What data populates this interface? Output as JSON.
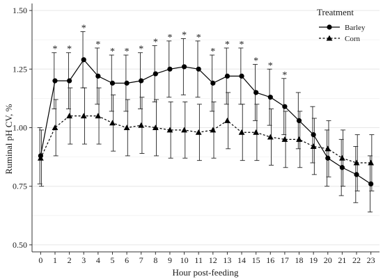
{
  "chart_data": {
    "type": "line",
    "title": "",
    "xlabel": "Hour post-feeding",
    "ylabel": "Ruminal pH CV, %",
    "x": [
      0,
      1,
      2,
      3,
      4,
      5,
      6,
      7,
      8,
      9,
      10,
      11,
      12,
      13,
      14,
      15,
      16,
      17,
      18,
      19,
      20,
      21,
      22,
      23
    ],
    "x_tick_labels": [
      "0",
      "1",
      "2",
      "3",
      "4",
      "5",
      "6",
      "7",
      "8",
      "9",
      "10",
      "11",
      "12",
      "13",
      "14",
      "15",
      "16",
      "17",
      "18",
      "19",
      "20",
      "21",
      "22",
      "23"
    ],
    "ylim": [
      0.47,
      1.53
    ],
    "y_ticks": [
      0.5,
      0.75,
      1.0,
      1.25,
      1.5
    ],
    "y_tick_labels": [
      "0.50",
      "0.75",
      "1.00",
      "1.25",
      "1.50"
    ],
    "grid": true,
    "legend": {
      "title": "Treatment",
      "placement": "top-right"
    },
    "series": [
      {
        "name": "Barley",
        "marker": "circle",
        "line_style": "solid",
        "color": "#000000",
        "values": [
          0.88,
          1.2,
          1.2,
          1.29,
          1.22,
          1.19,
          1.19,
          1.2,
          1.23,
          1.25,
          1.26,
          1.25,
          1.19,
          1.22,
          1.22,
          1.15,
          1.13,
          1.09,
          1.03,
          0.97,
          0.87,
          0.83,
          0.8,
          0.76
        ],
        "error": [
          0.12,
          0.12,
          0.12,
          0.12,
          0.12,
          0.12,
          0.12,
          0.12,
          0.12,
          0.12,
          0.12,
          0.12,
          0.12,
          0.12,
          0.12,
          0.12,
          0.12,
          0.12,
          0.12,
          0.12,
          0.12,
          0.12,
          0.12,
          0.12
        ]
      },
      {
        "name": "Corn",
        "marker": "triangle",
        "line_style": "dashed",
        "color": "#000000",
        "values": [
          0.87,
          1.0,
          1.05,
          1.05,
          1.05,
          1.02,
          1.0,
          1.01,
          1.0,
          0.99,
          0.99,
          0.98,
          0.99,
          1.03,
          0.98,
          0.98,
          0.96,
          0.95,
          0.95,
          0.92,
          0.91,
          0.87,
          0.85,
          0.85
        ],
        "error": [
          0.12,
          0.12,
          0.12,
          0.12,
          0.12,
          0.12,
          0.12,
          0.12,
          0.12,
          0.12,
          0.12,
          0.12,
          0.12,
          0.12,
          0.12,
          0.12,
          0.12,
          0.12,
          0.12,
          0.12,
          0.12,
          0.12,
          0.12,
          0.12
        ]
      }
    ],
    "significance_marker": "*",
    "significant_hours": [
      1,
      2,
      3,
      4,
      5,
      6,
      7,
      8,
      9,
      10,
      11,
      12,
      13,
      14,
      15,
      16,
      17
    ]
  }
}
